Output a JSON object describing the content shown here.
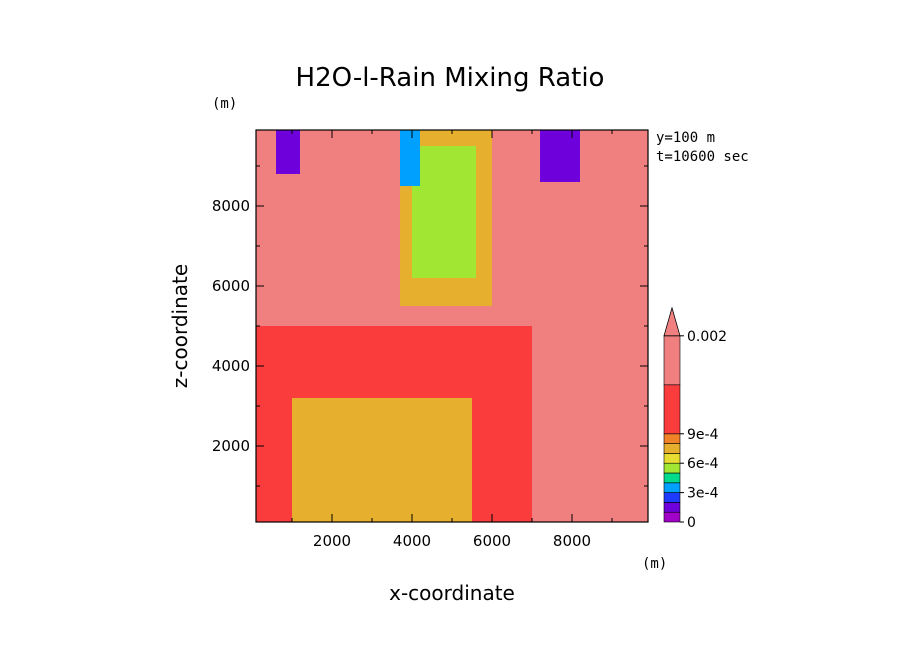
{
  "chart_data": {
    "type": "heatmap",
    "title": "H2O-l-Rain Mixing Ratio",
    "xlabel": "x-coordinate",
    "ylabel": "z-coordinate",
    "x_unit": "(m)",
    "y_unit": "(m)",
    "xlim": [
      100,
      9900
    ],
    "ylim": [
      100,
      9900
    ],
    "x_ticks": [
      2000,
      4000,
      6000,
      8000
    ],
    "y_ticks": [
      2000,
      4000,
      6000,
      8000
    ],
    "x_tick_labels": [
      "2000",
      "4000",
      "6000",
      "8000"
    ],
    "y_tick_labels": [
      "2000",
      "4000",
      "6000",
      "8000"
    ],
    "annotations": [
      "y=100 m",
      "t=10600 sec"
    ],
    "colorbar": {
      "levels": [
        0,
        0.0001,
        0.0002,
        0.0003,
        0.0004,
        0.0005,
        0.0006,
        0.0007,
        0.0008,
        0.0009,
        0.001,
        0.002
      ],
      "labels": [
        {
          "value": 0,
          "text": "0"
        },
        {
          "value": 0.0003,
          "text": "3e-4"
        },
        {
          "value": 0.0006,
          "text": "6e-4"
        },
        {
          "value": 0.0009,
          "text": "9e-4"
        },
        {
          "value": 0.002,
          "text": "0.002"
        }
      ],
      "colors": [
        "#a000c8",
        "#6e00dc",
        "#1e3cff",
        "#00a0ff",
        "#00dc8c",
        "#a0e632",
        "#e6dc32",
        "#e6af2d",
        "#f08228",
        "#fa3c3c",
        "#f08080"
      ],
      "extend": "max"
    },
    "regions": [
      {
        "x": [
          100,
          9900
        ],
        "z": [
          100,
          9900
        ],
        "value": 0.0012
      },
      {
        "x": [
          100,
          9900
        ],
        "z": [
          100,
          5000
        ],
        "value": 0.00095
      },
      {
        "x": [
          1000,
          5500
        ],
        "z": [
          100,
          3200
        ],
        "value": 0.00078
      },
      {
        "x": [
          1500,
          3000
        ],
        "z": [
          200,
          1800
        ],
        "value": 0.00072
      },
      {
        "x": [
          7000,
          9900
        ],
        "z": [
          100,
          6000
        ],
        "value": 0.0012
      },
      {
        "x": [
          3700,
          6000
        ],
        "z": [
          5500,
          9900
        ],
        "value": 0.0007
      },
      {
        "x": [
          4000,
          5600
        ],
        "z": [
          6200,
          9500
        ],
        "value": 0.00055
      },
      {
        "x": [
          3700,
          4200
        ],
        "z": [
          8500,
          9900
        ],
        "value": 0.00035
      },
      {
        "x": [
          600,
          1200
        ],
        "z": [
          8800,
          9900
        ],
        "value": 0.0001
      },
      {
        "x": [
          7200,
          8200
        ],
        "z": [
          8600,
          9900
        ],
        "value": 0.0001
      },
      {
        "x": [
          8300,
          9500
        ],
        "z": [
          7500,
          9500
        ],
        "value": 0.0015
      }
    ]
  }
}
